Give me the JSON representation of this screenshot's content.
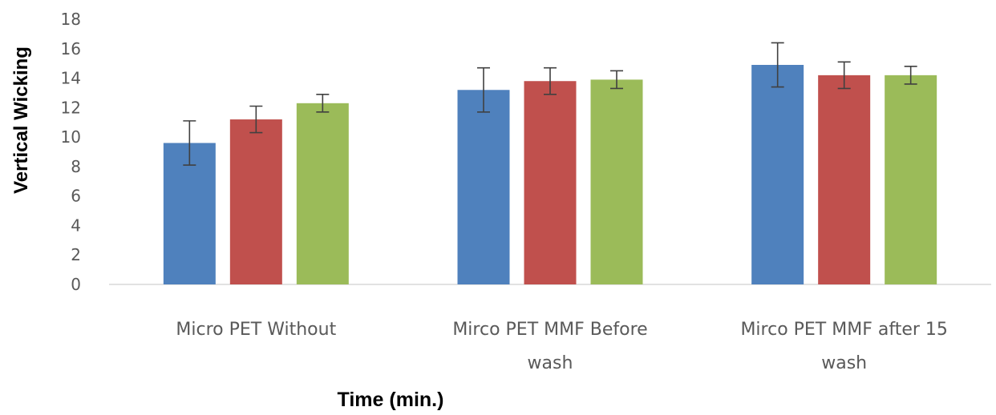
{
  "chart_data": {
    "type": "bar",
    "title": "",
    "xlabel": "Time (min.)",
    "ylabel": "Vertical Wicking",
    "ylim": [
      0,
      18
    ],
    "yticks": [
      0,
      2,
      4,
      6,
      8,
      10,
      12,
      14,
      16,
      18
    ],
    "grid": false,
    "legend": "none",
    "categories": [
      [
        "Micro PET Without"
      ],
      [
        "Mirco PET MMF Before",
        "wash"
      ],
      [
        "Mirco PET MMF after 15",
        "wash"
      ]
    ],
    "series": [
      {
        "color": "#4F81BD",
        "values": [
          9.6,
          13.2,
          14.9
        ],
        "errors": [
          1.5,
          1.5,
          1.5
        ]
      },
      {
        "color": "#C0504D",
        "values": [
          11.2,
          13.8,
          14.2
        ],
        "errors": [
          0.9,
          0.9,
          0.9
        ]
      },
      {
        "color": "#9BBB59",
        "values": [
          12.3,
          13.9,
          14.2
        ],
        "errors": [
          0.6,
          0.6,
          0.6
        ]
      }
    ]
  }
}
